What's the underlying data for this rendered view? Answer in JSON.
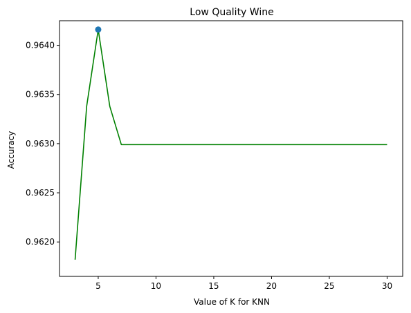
{
  "chart_data": {
    "type": "line",
    "title": "Low Quality Wine",
    "title_color": "#800080",
    "xlabel": "Value of K for KNN",
    "ylabel": "Accuracy",
    "xlim": [
      1.65,
      31.35
    ],
    "ylim": [
      0.96165,
      0.96425
    ],
    "x_ticks": [
      5,
      10,
      15,
      20,
      25,
      30
    ],
    "x_tick_labels": [
      "5",
      "10",
      "15",
      "20",
      "25",
      "30"
    ],
    "y_ticks": [
      0.962,
      0.9625,
      0.963,
      0.9635,
      0.964
    ],
    "y_tick_labels": [
      "0.9620",
      "0.9625",
      "0.9630",
      "0.9635",
      "0.9640"
    ],
    "grid": false,
    "series": [
      {
        "color": "#008000",
        "x": [
          3,
          4,
          5,
          6,
          7,
          8,
          9,
          10,
          11,
          12,
          13,
          14,
          15,
          16,
          17,
          18,
          19,
          20,
          21,
          22,
          23,
          24,
          25,
          26,
          27,
          28,
          29,
          30
        ],
        "y": [
          0.96182,
          0.96338,
          0.96416,
          0.96338,
          0.96299,
          0.96299,
          0.96299,
          0.96299,
          0.96299,
          0.96299,
          0.96299,
          0.96299,
          0.96299,
          0.96299,
          0.96299,
          0.96299,
          0.96299,
          0.96299,
          0.96299,
          0.96299,
          0.96299,
          0.96299,
          0.96299,
          0.96299,
          0.96299,
          0.96299,
          0.96299,
          0.96299
        ]
      }
    ],
    "highlight_point": {
      "x": 5,
      "y": 0.96416,
      "color": "#1f77b4"
    }
  }
}
